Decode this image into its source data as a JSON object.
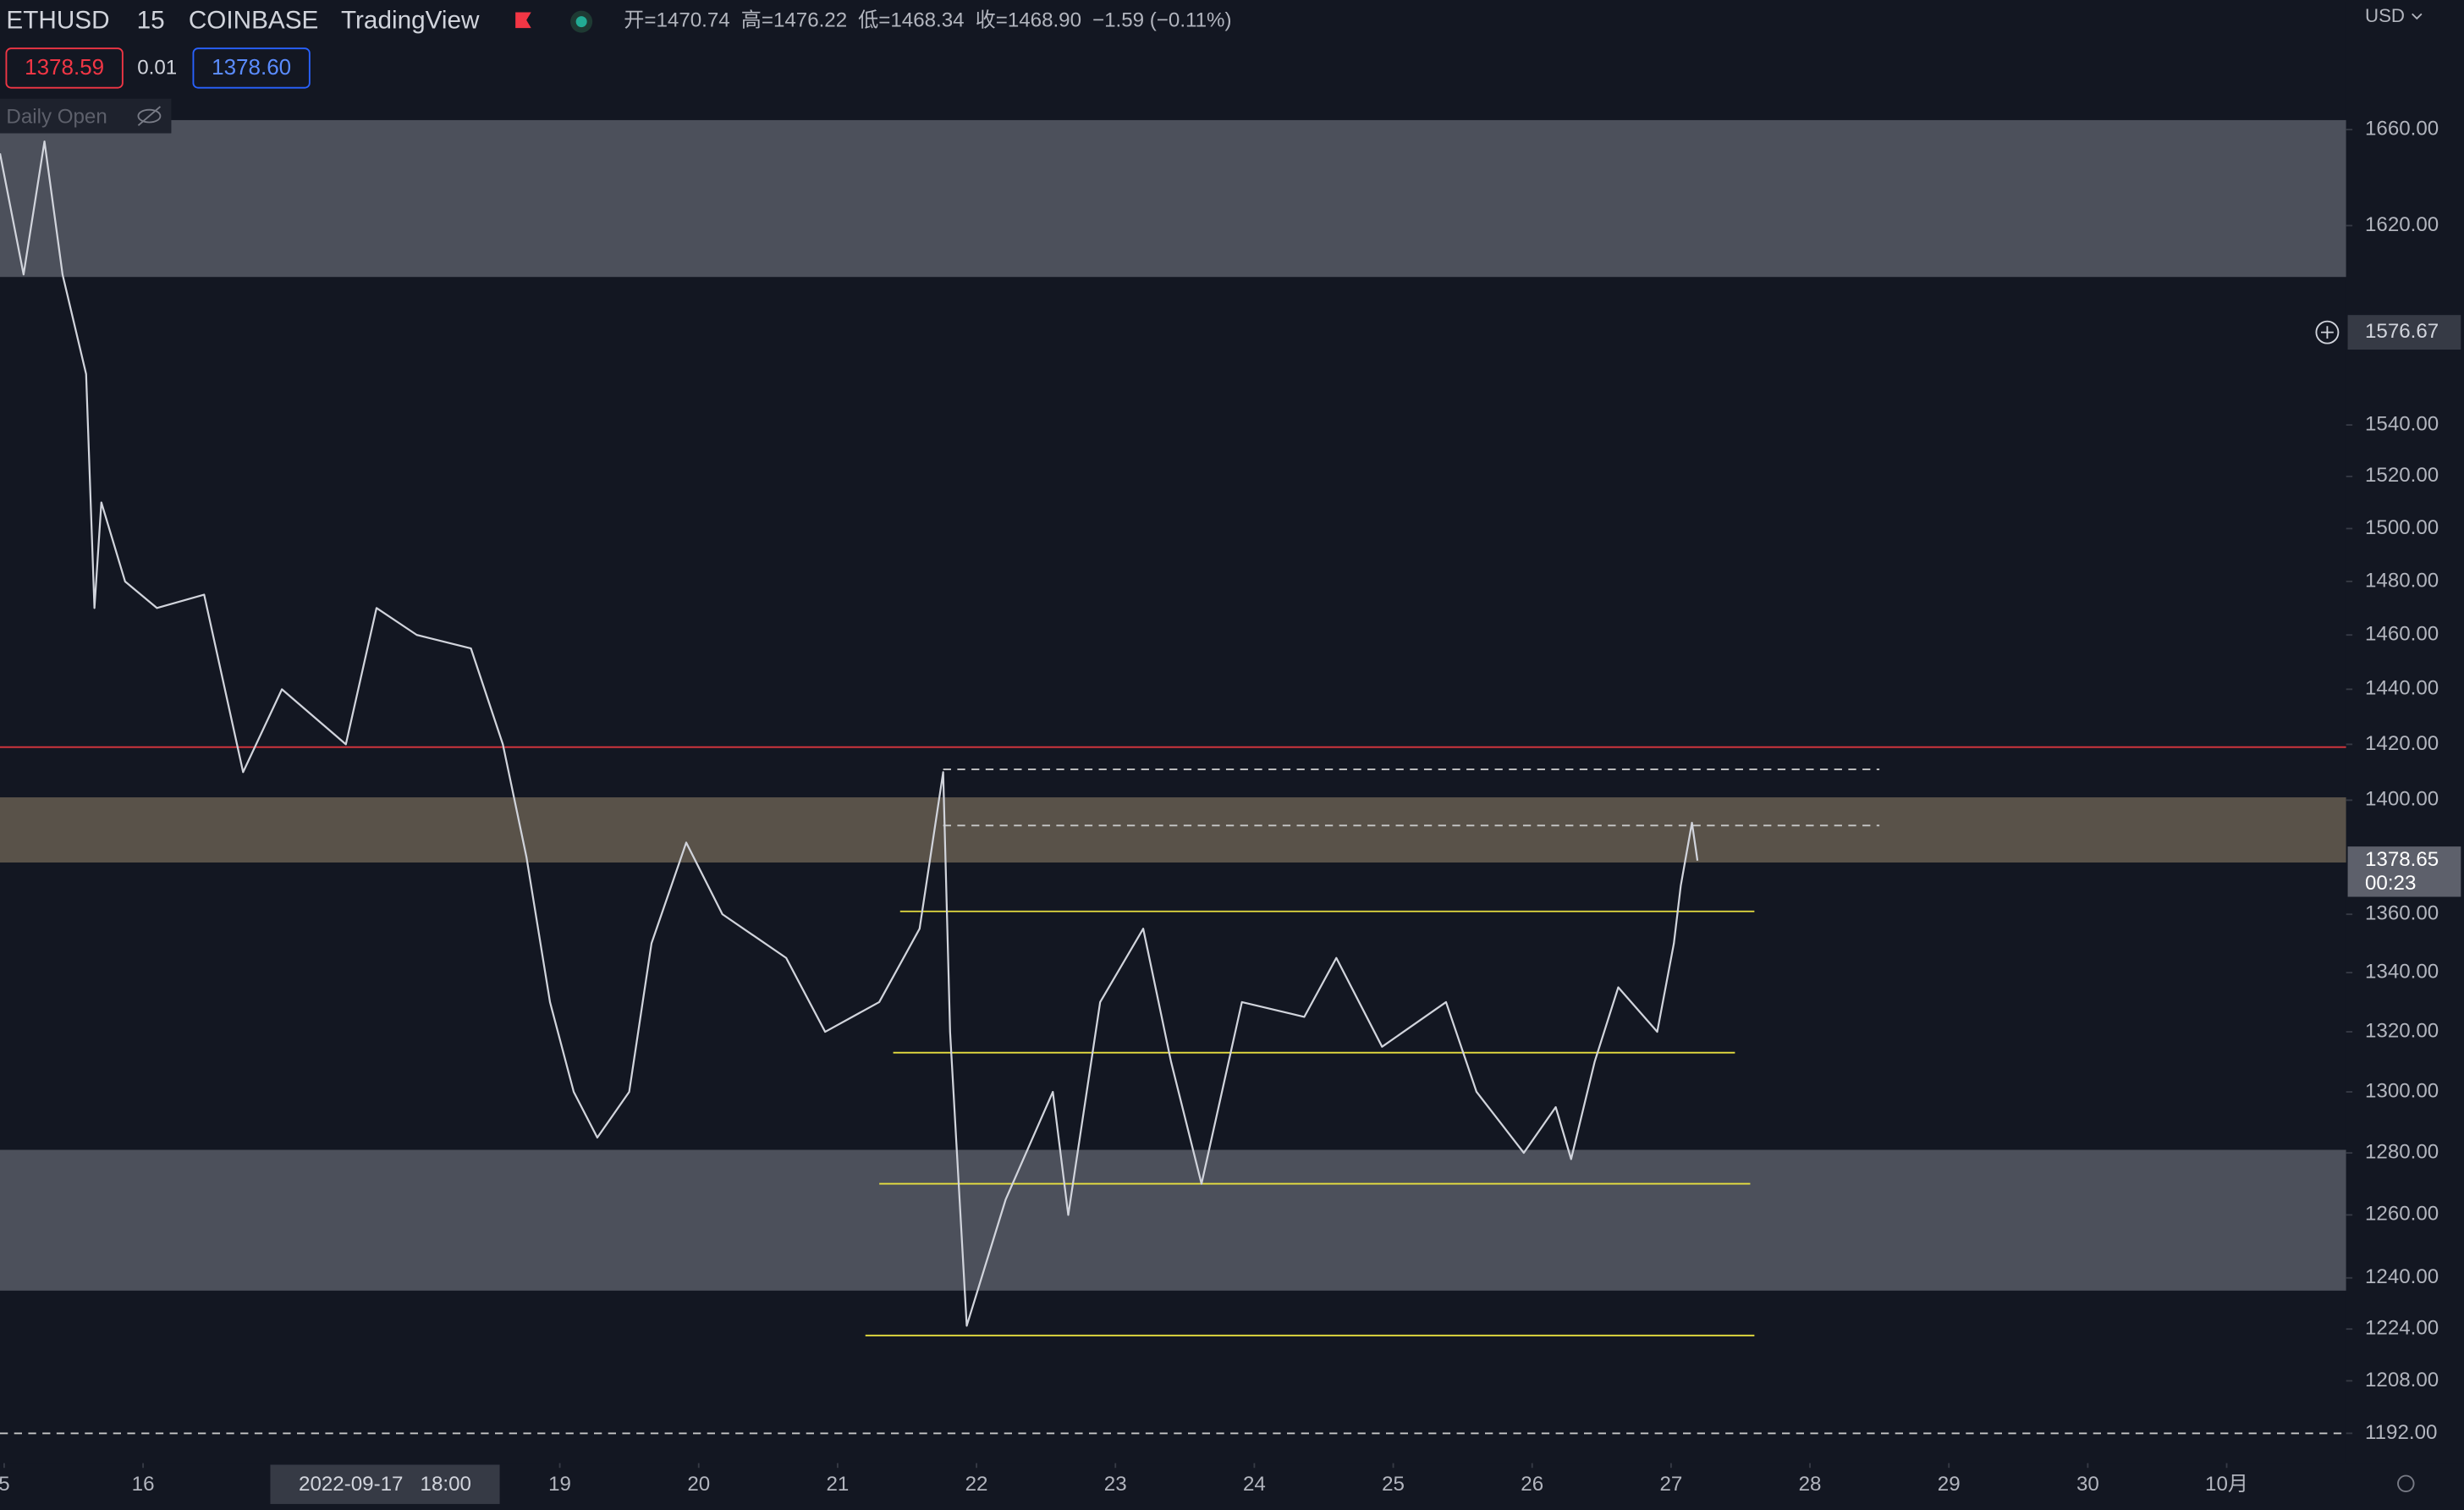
{
  "chart_data": {
    "type": "line",
    "header": {
      "symbol": [
        "ETHUSD",
        "15",
        "COINBASE",
        "TradingView"
      ],
      "ohlc": [
        {
          "label": "开=",
          "value": "1470.74"
        },
        {
          "label": "高=",
          "value": "1476.22"
        },
        {
          "label": "低=",
          "value": "1468.34"
        },
        {
          "label": "收=",
          "value": "1468.90"
        }
      ],
      "change": "−1.59 (−0.11%)",
      "bid": "1378.59",
      "spread": "0.01",
      "ask": "1378.60",
      "indicator": "Daily Open"
    },
    "currency": "USD",
    "crosshair_time": "2022-09-17   18:00",
    "crosshair_price": {
      "value": 1576.67,
      "label": "1576.67"
    },
    "last_price": {
      "value": 1378.65,
      "label": "1378.65"
    },
    "countdown": "00:23",
    "log_scale": true,
    "color": "#d1d4dc",
    "x": [
      14.97,
      15.14,
      15.29,
      15.42,
      15.59,
      15.65,
      15.7,
      15.87,
      16.1,
      16.44,
      16.72,
      17.0,
      17.46,
      17.68,
      17.97,
      18.36,
      18.59,
      18.76,
      18.93,
      19.1,
      19.27,
      19.5,
      19.66,
      19.91,
      20.17,
      20.63,
      20.91,
      21.3,
      21.59,
      21.76,
      21.81,
      21.93,
      22.21,
      22.55,
      22.66,
      22.89,
      23.2,
      23.4,
      23.62,
      23.91,
      24.36,
      24.59,
      24.92,
      25.38,
      25.6,
      25.94,
      26.17,
      26.28,
      26.45,
      26.62,
      26.9,
      27.02,
      27.07,
      27.15,
      27.19
    ],
    "values": [
      1650,
      1600,
      1655,
      1600,
      1560,
      1470,
      1510,
      1480,
      1470,
      1475,
      1410,
      1440,
      1420,
      1470,
      1460,
      1455,
      1420,
      1380,
      1330,
      1300,
      1285,
      1300,
      1350,
      1385,
      1360,
      1345,
      1320,
      1330,
      1355,
      1410,
      1320,
      1225,
      1265,
      1300,
      1260,
      1330,
      1355,
      1310,
      1270,
      1330,
      1325,
      1345,
      1315,
      1330,
      1300,
      1280,
      1295,
      1278,
      1310,
      1335,
      1320,
      1350,
      1370,
      1392,
      1378.65
    ],
    "xlim": [
      14.97,
      31.86
    ],
    "ylim": [
      1183,
      1715
    ],
    "xticks": [
      {
        "value": 15,
        "label": "5"
      },
      16,
      19,
      20,
      21,
      22,
      23,
      24,
      25,
      26,
      27,
      28,
      29,
      30,
      {
        "value": 31,
        "label": "10月"
      }
    ],
    "yticks": [
      {
        "value": 1660,
        "label": "1660.00"
      },
      {
        "value": 1620,
        "label": "1620.00"
      },
      {
        "value": 1540,
        "label": "1540.00"
      },
      {
        "value": 1520,
        "label": "1520.00"
      },
      {
        "value": 1500,
        "label": "1500.00"
      },
      {
        "value": 1480,
        "label": "1480.00"
      },
      {
        "value": 1460,
        "label": "1460.00"
      },
      {
        "value": 1440,
        "label": "1440.00"
      },
      {
        "value": 1420,
        "label": "1420.00"
      },
      {
        "value": 1400,
        "label": "1400.00"
      },
      {
        "value": 1360,
        "label": "1360.00"
      },
      {
        "value": 1340,
        "label": "1340.00"
      },
      {
        "value": 1320,
        "label": "1320.00"
      },
      {
        "value": 1300,
        "label": "1300.00"
      },
      {
        "value": 1280,
        "label": "1280.00"
      },
      {
        "value": 1260,
        "label": "1260.00"
      },
      {
        "value": 1240,
        "label": "1240.00"
      },
      {
        "value": 1224,
        "label": "1224.00"
      },
      {
        "value": 1208,
        "label": "1208.00"
      },
      {
        "value": 1192,
        "label": "1192.00"
      }
    ],
    "zones": [
      {
        "low": 1599,
        "high": 1664,
        "color": "#4c505b"
      },
      {
        "low": 1378,
        "high": 1401,
        "color": "#595249"
      },
      {
        "low": 1236,
        "high": 1281,
        "color": "#4c505b"
      }
    ],
    "hlines": [
      {
        "value": 1419,
        "color": "#d9363e",
        "dash": false,
        "x": [
          14.97,
          31.86
        ]
      },
      {
        "value": 1411,
        "color": "#c8c8c8",
        "dash": true,
        "x": [
          21.76,
          28.5
        ]
      },
      {
        "value": 1391,
        "color": "#c8c8c8",
        "dash": true,
        "x": [
          21.76,
          28.5
        ]
      },
      {
        "value": 1361,
        "color": "#e8e040",
        "dash": false,
        "x": [
          21.45,
          27.6
        ]
      },
      {
        "value": 1313,
        "color": "#e8e040",
        "dash": false,
        "x": [
          21.4,
          27.46
        ]
      },
      {
        "value": 1270,
        "color": "#e8e040",
        "dash": false,
        "x": [
          21.3,
          27.57
        ]
      },
      {
        "value": 1222,
        "color": "#e8e040",
        "dash": false,
        "x": [
          21.2,
          27.6
        ]
      },
      {
        "value": 1192,
        "color": "#c8c8c8",
        "dash": true,
        "x": [
          14.97,
          31.86
        ]
      }
    ]
  }
}
